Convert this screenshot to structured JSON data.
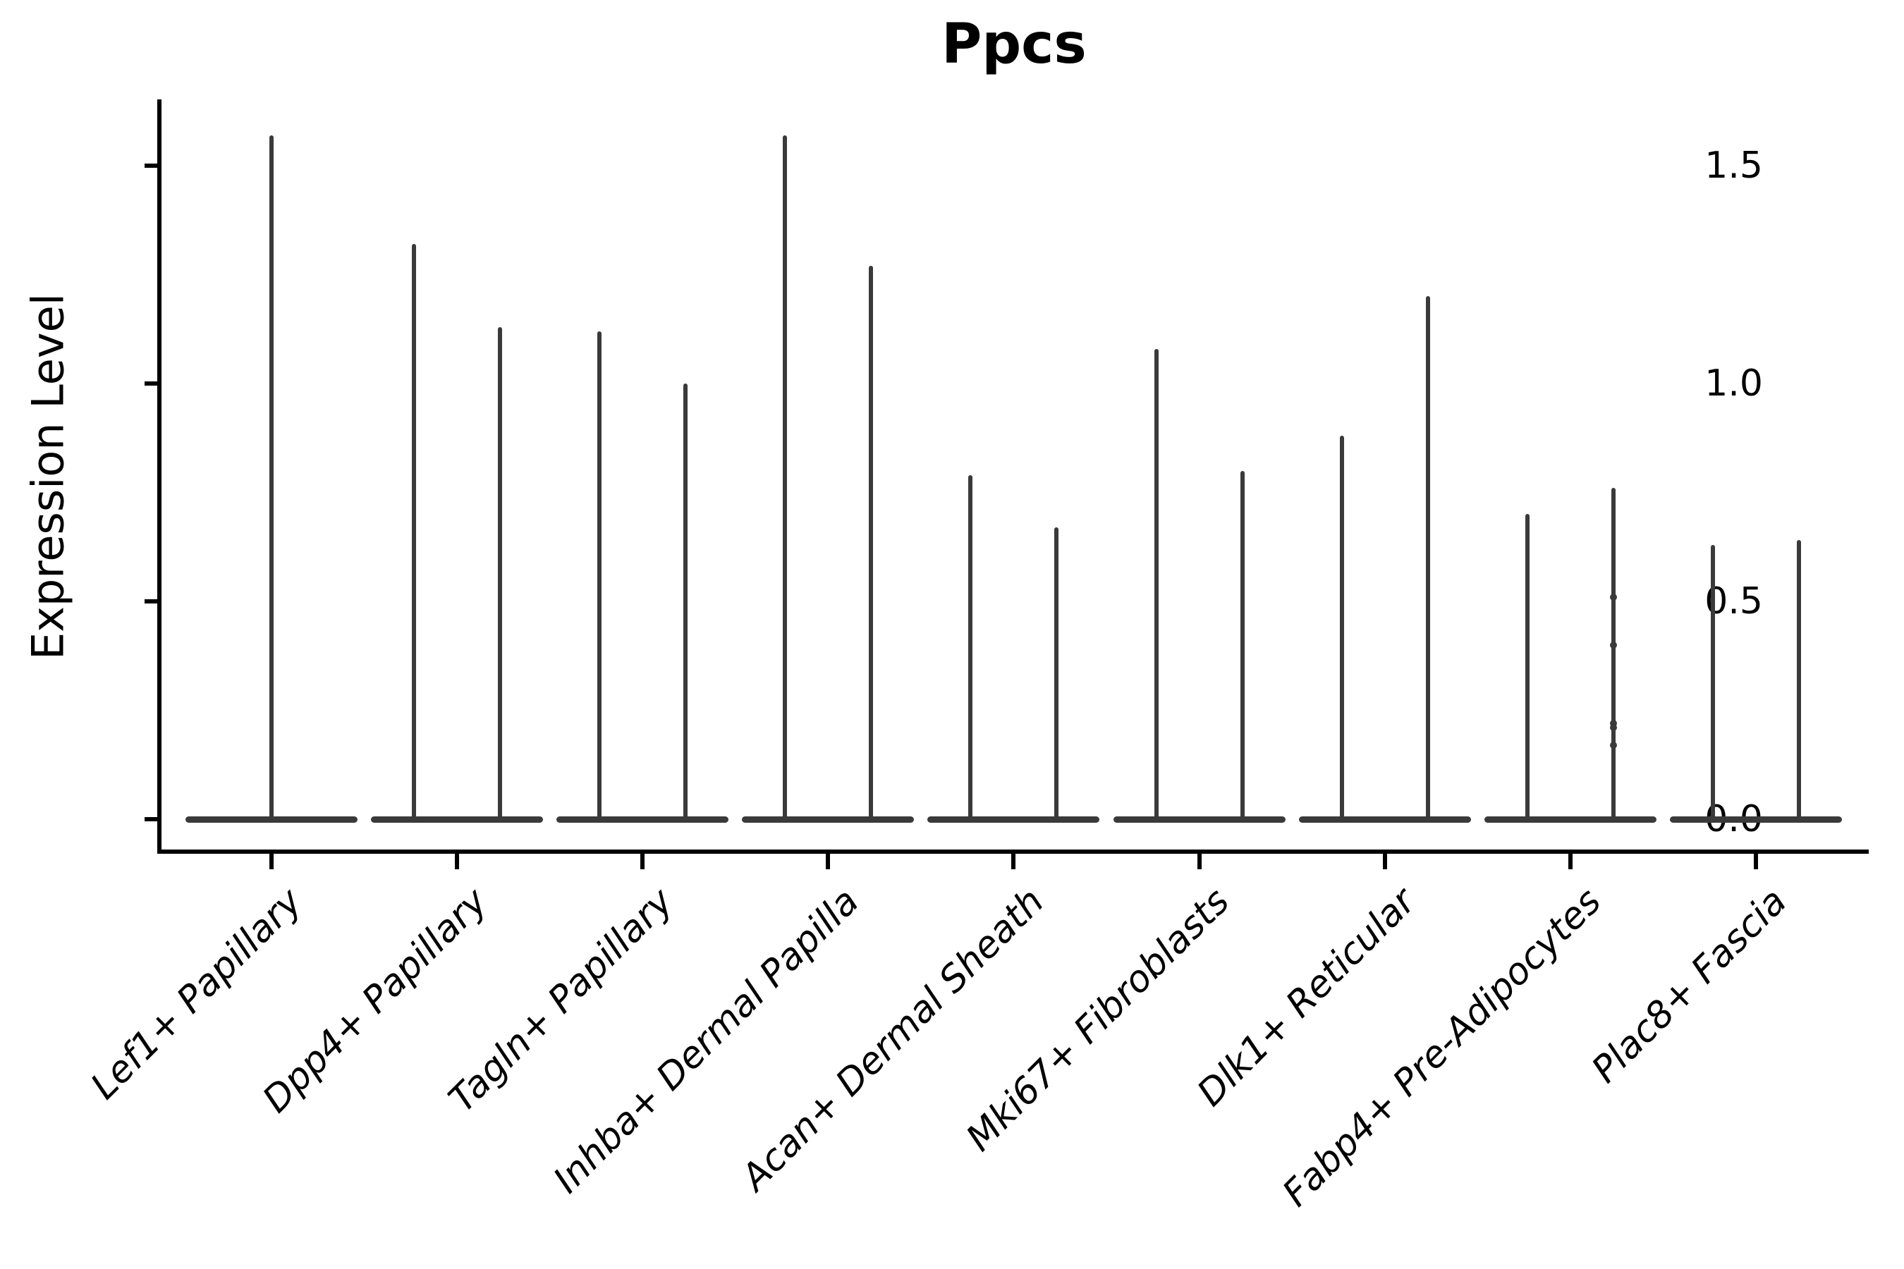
{
  "chart_data": {
    "type": "violin",
    "title": "Ppcs",
    "xlabel": "",
    "ylabel": "Expression Level",
    "ytick_labels": [
      "0.0",
      "0.5",
      "1.0",
      "1.5"
    ],
    "ytick_values": [
      0.0,
      0.5,
      1.0,
      1.5
    ],
    "ylim": [
      -0.07,
      1.65
    ],
    "grid": false,
    "legend": null,
    "categories": [
      "Lef1+ Papillary",
      "Dpp4+ Papillary",
      "Tagln+ Papillary",
      "Inhba+ Dermal Papilla",
      "Acan+ Dermal Sheath",
      "Mki67+ Fibroblasts",
      "Dlk1+ Reticular",
      "Fabp4+ Pre-Adipocytes",
      "Plac8+ Fascia"
    ],
    "groups": [
      {
        "category": "Lef1+ Papillary",
        "violin_maxima": [
          1.57
        ]
      },
      {
        "category": "Dpp4+ Papillary",
        "violin_maxima": [
          1.32,
          1.13
        ]
      },
      {
        "category": "Tagln+ Papillary",
        "violin_maxima": [
          1.12,
          1.0
        ]
      },
      {
        "category": "Inhba+ Dermal Papilla",
        "violin_maxima": [
          1.57,
          1.27
        ]
      },
      {
        "category": "Acan+ Dermal Sheath",
        "violin_maxima": [
          0.79,
          0.67
        ]
      },
      {
        "category": "Mki67+ Fibroblasts",
        "violin_maxima": [
          1.08,
          0.8
        ]
      },
      {
        "category": "Dlk1+ Reticular",
        "violin_maxima": [
          0.88,
          1.2
        ]
      },
      {
        "category": "Fabp4+ Pre-Adipocytes",
        "violin_maxima": [
          0.7,
          0.76
        ]
      },
      {
        "category": "Plac8+ Fascia",
        "violin_maxima": [
          0.63,
          0.64
        ]
      }
    ],
    "jitter_points": [
      {
        "category": "Fabp4+ Pre-Adipocytes",
        "violin_index": 1,
        "values": [
          0.51,
          0.4,
          0.22,
          0.21,
          0.17
        ]
      }
    ],
    "colors": {
      "violin": "#3a3a3a",
      "axis": "#000000",
      "text": "#000000",
      "background": "#ffffff"
    }
  }
}
